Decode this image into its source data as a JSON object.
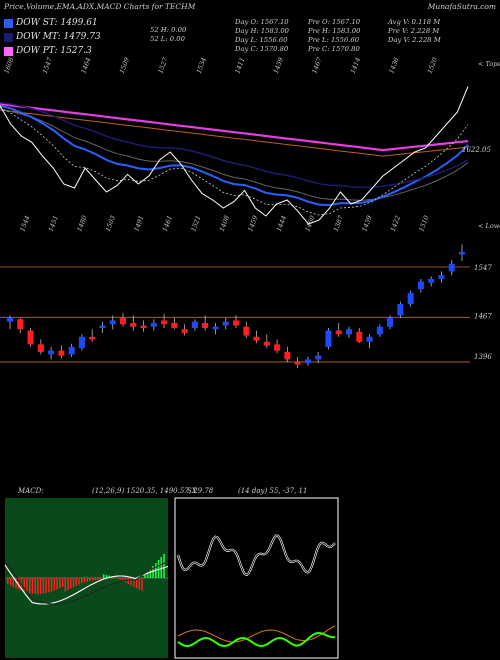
{
  "header": {
    "title": "Price,Volume,EMA,ADX,MACD Charts for TECHM",
    "site": "MunafaSutra.com"
  },
  "legend": [
    {
      "label": "DOW ST: 1499.61",
      "color": "#2e5bff"
    },
    {
      "label": "DOW MT: 1479.73",
      "color": "#1c1c6e"
    },
    {
      "label": "DOW PT: 1527.3",
      "color": "#ff66ff"
    }
  ],
  "ohlc": {
    "col1": [
      "Day O: 1567.10",
      "Day H: 1583.00",
      "Day L: 1556.60",
      "Day C: 1570.80"
    ],
    "col2": [
      "Pre O: 1567.10",
      "Pre H: 1583.00",
      "Pre L: 1556.60",
      "Pre C: 1570.80"
    ],
    "col3": [
      "Avg V: 0.118 M",
      "Pre V: 2.228 M",
      "Day V: 2.228 M"
    ],
    "week52": [
      "52 H: 0.00",
      "52 L: 0.00"
    ]
  },
  "ema_panel": {
    "corner_label": "< Tope",
    "price_label": "1622.05",
    "top_ticks": [
      "1608",
      "1547",
      "1464",
      "1509",
      "1527",
      "1534",
      "1411",
      "1459",
      "1467",
      "1414",
      "1436",
      "1520"
    ],
    "bottom_ticks": [
      "1544",
      "1451",
      "1480",
      "1503",
      "1491",
      "1461",
      "1521",
      "1408",
      "1459",
      "1444",
      "1460",
      "1387",
      "1439",
      "1422",
      "1510"
    ]
  },
  "candle_panel": {
    "corner_label": "< Lowes",
    "levels": [
      "1547",
      "1467",
      "1396"
    ]
  },
  "macd": {
    "label": "MACD:",
    "values": "(12,26,9) 1520.35, 1490.57, 29.78"
  },
  "adx": {
    "values": "(14 day) 55, -37, 11",
    "overlap_label": "SX"
  },
  "colors": {
    "up": "#1c4bff",
    "down": "#ff1f1f",
    "ema_pink": "#e040e0",
    "ema_orange": "#c06010",
    "ema_blue": "#2a60ff",
    "macd_bg": "#0a4a1a",
    "macd_hist_neg": "#ff2020",
    "macd_hist_pos": "#20ff40",
    "adx_green": "#33ff00",
    "adx_orange": "#d97a00"
  },
  "chart_data": [
    {
      "type": "line",
      "name": "ema-panel",
      "close": [
        1598,
        1575,
        1560,
        1552,
        1535,
        1520,
        1500,
        1495,
        1520,
        1505,
        1490,
        1498,
        1512,
        1500,
        1510,
        1530,
        1540,
        1525,
        1505,
        1488,
        1480,
        1470,
        1478,
        1492,
        1470,
        1460,
        1475,
        1480,
        1466,
        1450,
        1455,
        1470,
        1490,
        1475,
        1480,
        1495,
        1510,
        1520,
        1530,
        1540,
        1545,
        1560,
        1575,
        1590,
        1622
      ]
    },
    {
      "type": "bar",
      "name": "candles",
      "candles": [
        [
          1460,
          1470,
          1448,
          1466
        ],
        [
          1464,
          1466,
          1442,
          1448
        ],
        [
          1446,
          1450,
          1420,
          1424
        ],
        [
          1424,
          1432,
          1408,
          1412
        ],
        [
          1408,
          1420,
          1400,
          1414
        ],
        [
          1414,
          1422,
          1402,
          1406
        ],
        [
          1408,
          1425,
          1404,
          1420
        ],
        [
          1418,
          1440,
          1414,
          1436
        ],
        [
          1436,
          1448,
          1428,
          1432
        ],
        [
          1450,
          1460,
          1442,
          1454
        ],
        [
          1456,
          1470,
          1448,
          1462
        ],
        [
          1466,
          1474,
          1452,
          1456
        ],
        [
          1458,
          1470,
          1446,
          1452
        ],
        [
          1454,
          1462,
          1444,
          1450
        ],
        [
          1452,
          1464,
          1446,
          1458
        ],
        [
          1462,
          1472,
          1450,
          1456
        ],
        [
          1458,
          1466,
          1448,
          1450
        ],
        [
          1448,
          1456,
          1438,
          1442
        ],
        [
          1450,
          1464,
          1446,
          1460
        ],
        [
          1458,
          1470,
          1446,
          1450
        ],
        [
          1448,
          1458,
          1440,
          1452
        ],
        [
          1454,
          1466,
          1448,
          1460
        ],
        [
          1462,
          1470,
          1450,
          1454
        ],
        [
          1452,
          1460,
          1434,
          1438
        ],
        [
          1436,
          1446,
          1426,
          1430
        ],
        [
          1428,
          1440,
          1418,
          1422
        ],
        [
          1424,
          1432,
          1410,
          1414
        ],
        [
          1412,
          1420,
          1396,
          1400
        ],
        [
          1396,
          1404,
          1386,
          1392
        ],
        [
          1394,
          1404,
          1390,
          1400
        ],
        [
          1400,
          1412,
          1394,
          1406
        ],
        [
          1420,
          1450,
          1416,
          1446
        ],
        [
          1446,
          1458,
          1436,
          1440
        ],
        [
          1440,
          1452,
          1434,
          1448
        ],
        [
          1444,
          1450,
          1426,
          1428
        ],
        [
          1428,
          1440,
          1418,
          1436
        ],
        [
          1440,
          1456,
          1436,
          1452
        ],
        [
          1452,
          1470,
          1448,
          1466
        ],
        [
          1470,
          1492,
          1466,
          1488
        ],
        [
          1488,
          1510,
          1484,
          1506
        ],
        [
          1512,
          1528,
          1506,
          1524
        ],
        [
          1522,
          1532,
          1516,
          1528
        ],
        [
          1528,
          1540,
          1522,
          1534
        ],
        [
          1540,
          1558,
          1534,
          1552
        ],
        [
          1567.1,
          1583,
          1556.6,
          1570.8
        ]
      ]
    }
  ]
}
